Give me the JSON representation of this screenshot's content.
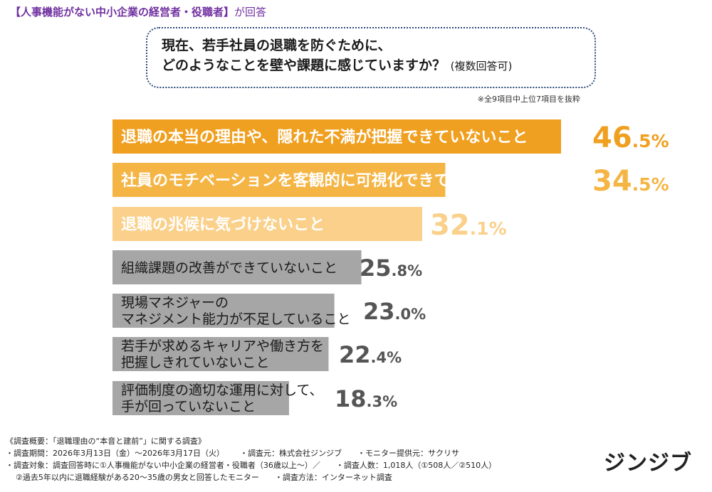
{
  "header": {
    "title": "【人事機能がない中小企業の経営者・役職者】",
    "suffix": "が回答"
  },
  "question": {
    "line1": "現在、若手社員の退職を防ぐために、",
    "line2": "どのようなことを壁や課題に感じていますか？",
    "note": "(複数回答可)"
  },
  "subnote": "※全9項目中上位7項目を抜粋",
  "chart_data": {
    "type": "bar",
    "orientation": "horizontal",
    "categories": [
      [
        "退職の本当の理由や、隠れた不満が把握できていないこと"
      ],
      [
        "社員のモチベーションを客観的に可視化できていないこと"
      ],
      [
        "退職の兆候に気づけないこと"
      ],
      [
        "組織課題の改善ができていないこと"
      ],
      [
        "現場マネジャーの",
        "マネジメント能力が不足していること"
      ],
      [
        "若手が求めるキャリアや働き方を",
        "把握しきれていないこと"
      ],
      [
        "評価制度の適切な運用に対して、",
        "手が回っていないこと"
      ]
    ],
    "values": [
      46.5,
      34.5,
      32.1,
      25.8,
      23.0,
      22.4,
      18.3
    ],
    "value_labels": [
      {
        "int": "46",
        "dec": ".5%"
      },
      {
        "int": "34",
        "dec": ".5%"
      },
      {
        "int": "32",
        "dec": ".1%"
      },
      {
        "int": "25",
        "dec": ".8%"
      },
      {
        "int": "23",
        "dec": ".0%"
      },
      {
        "int": "22",
        "dec": ".4%"
      },
      {
        "int": "18",
        "dec": ".3%"
      }
    ],
    "colors": [
      "#f0a020",
      "#f5b545",
      "#fad08a",
      "#a6a6a6",
      "#a6a6a6",
      "#a6a6a6",
      "#a6a6a6"
    ],
    "label_colors": [
      "#ffffff",
      "#ffffff",
      "#ffffff",
      "#1a1a1a",
      "#1a1a1a",
      "#1a1a1a",
      "#1a1a1a"
    ],
    "value_colors": [
      "#f0a020",
      "#f5b545",
      "#fad08a",
      "#555555",
      "#555555",
      "#555555",
      "#555555"
    ]
  },
  "footer": {
    "line1": "《調査概要：「退職理由の“本音と建前”」に関する調査》",
    "line2a": "・調査期間：2026年3月13日（金）～2026年3月17日（火）",
    "line2b": "・調査元：株式会社ジンジブ",
    "line2c": "・モニター提供元：サクリサ",
    "line3a": "・調査対象：調査回答時に①人事機能がない中小企業の経営者・役職者（36歳以上～）／",
    "line3b": "・調査人数：1,018人（①508人／②510人）",
    "line4a": "②過去5年以内に退職経験がある20～35歳の男女と回答したモニター",
    "line4b": "・調査方法：インターネット調査"
  },
  "logo": "ジンジブ"
}
